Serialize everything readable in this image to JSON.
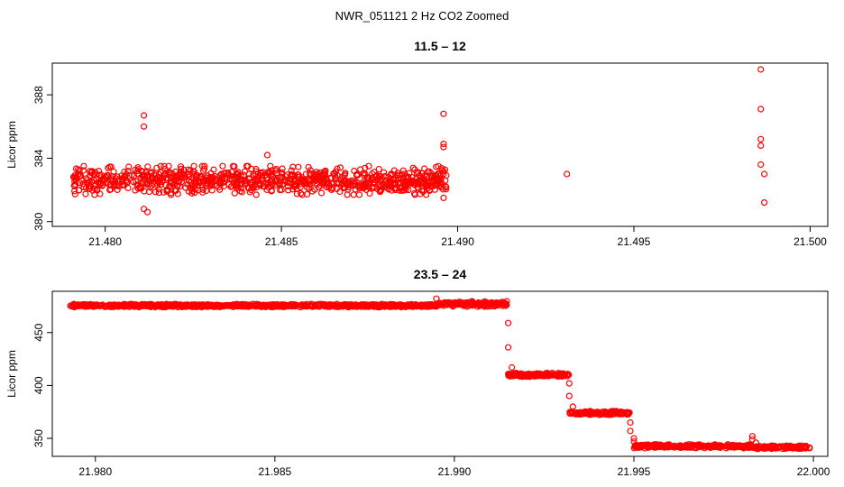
{
  "figure_title": "NWR_051121  2 Hz CO2 Zoomed",
  "chart_data": [
    {
      "type": "scatter",
      "title": "11.5 – 12",
      "xlabel": "",
      "ylabel": "Licor ppm",
      "xlim": [
        21.4785,
        21.5005
      ],
      "ylim": [
        379.7,
        390.0
      ],
      "xticks": [
        21.48,
        21.485,
        21.49,
        21.495,
        21.5
      ],
      "xtick_labels": [
        "21.480",
        "21.485",
        "21.490",
        "21.495",
        "21.500"
      ],
      "yticks": [
        380,
        384,
        388
      ],
      "ytick_labels": [
        "380",
        "384",
        "388"
      ],
      "grid": false,
      "marker_color": "#ff0000",
      "bands": [
        {
          "x_start": 21.4791,
          "x_end": 21.4897,
          "y_center": 382.6,
          "y_spread": 0.9
        }
      ],
      "outliers": [
        {
          "x": 21.4811,
          "y": 386.7
        },
        {
          "x": 21.4811,
          "y": 386.0
        },
        {
          "x": 21.4811,
          "y": 380.8
        },
        {
          "x": 21.4812,
          "y": 380.6
        },
        {
          "x": 21.4846,
          "y": 384.2
        },
        {
          "x": 21.4896,
          "y": 386.8
        },
        {
          "x": 21.4896,
          "y": 384.9
        },
        {
          "x": 21.4896,
          "y": 384.7
        },
        {
          "x": 21.4896,
          "y": 381.5
        },
        {
          "x": 21.4931,
          "y": 383.0
        },
        {
          "x": 21.4986,
          "y": 389.6
        },
        {
          "x": 21.4986,
          "y": 387.1
        },
        {
          "x": 21.4986,
          "y": 385.2
        },
        {
          "x": 21.4986,
          "y": 384.8
        },
        {
          "x": 21.4986,
          "y": 383.6
        },
        {
          "x": 21.4987,
          "y": 383.0
        },
        {
          "x": 21.4987,
          "y": 381.2
        }
      ]
    },
    {
      "type": "scatter",
      "title": "23.5 – 24",
      "xlabel": "",
      "ylabel": "Licor ppm",
      "xlim": [
        21.9788,
        22.0004
      ],
      "ylim": [
        333,
        489
      ],
      "xticks": [
        21.98,
        21.985,
        21.99,
        21.995,
        22.0
      ],
      "xtick_labels": [
        "21.980",
        "21.985",
        "21.990",
        "21.995",
        "22.000"
      ],
      "yticks": [
        350,
        400,
        450
      ],
      "ytick_labels": [
        "350",
        "400",
        "450"
      ],
      "grid": false,
      "marker_color": "#ff0000",
      "bands": [
        {
          "x_start": 21.9793,
          "x_end": 21.9895,
          "y_center": 475.5,
          "y_spread": 1.5
        },
        {
          "x_start": 21.9895,
          "x_end": 21.9915,
          "y_center": 477.0,
          "y_spread": 2.5
        },
        {
          "x_start": 21.9915,
          "x_end": 21.9932,
          "y_center": 410.0,
          "y_spread": 1.8
        },
        {
          "x_start": 21.9932,
          "x_end": 21.9949,
          "y_center": 374.0,
          "y_spread": 1.8
        },
        {
          "x_start": 21.995,
          "x_end": 21.9983,
          "y_center": 342.5,
          "y_spread": 1.8
        },
        {
          "x_start": 21.9983,
          "x_end": 21.9999,
          "y_center": 341.5,
          "y_spread": 1.6
        }
      ],
      "outliers": [
        {
          "x": 21.9895,
          "y": 482.0
        },
        {
          "x": 21.9915,
          "y": 459.0
        },
        {
          "x": 21.9915,
          "y": 436.0
        },
        {
          "x": 21.9916,
          "y": 417.0
        },
        {
          "x": 21.9932,
          "y": 402.0
        },
        {
          "x": 21.9932,
          "y": 390.0
        },
        {
          "x": 21.9933,
          "y": 380.0
        },
        {
          "x": 21.9949,
          "y": 365.0
        },
        {
          "x": 21.9949,
          "y": 357.0
        },
        {
          "x": 21.995,
          "y": 350.0
        },
        {
          "x": 21.995,
          "y": 347.0
        },
        {
          "x": 21.9983,
          "y": 352.0
        },
        {
          "x": 21.9983,
          "y": 349.0
        },
        {
          "x": 21.9984,
          "y": 346.0
        }
      ]
    }
  ]
}
